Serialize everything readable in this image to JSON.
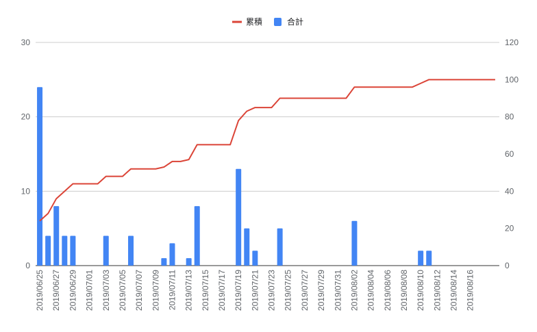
{
  "chart_data": {
    "type": "bar",
    "title": "",
    "x": [
      "2019/06/25",
      "2019/06/26",
      "2019/06/27",
      "2019/06/28",
      "2019/06/29",
      "2019/06/30",
      "2019/07/01",
      "2019/07/02",
      "2019/07/03",
      "2019/07/04",
      "2019/07/05",
      "2019/07/06",
      "2019/07/07",
      "2019/07/08",
      "2019/07/09",
      "2019/07/10",
      "2019/07/11",
      "2019/07/12",
      "2019/07/13",
      "2019/07/14",
      "2019/07/15",
      "2019/07/16",
      "2019/07/17",
      "2019/07/18",
      "2019/07/19",
      "2019/07/20",
      "2019/07/21",
      "2019/07/22",
      "2019/07/23",
      "2019/07/24",
      "2019/07/25",
      "2019/07/26",
      "2019/07/27",
      "2019/07/28",
      "2019/07/29",
      "2019/07/30",
      "2019/07/31",
      "2019/08/01",
      "2019/08/02",
      "2019/08/03",
      "2019/08/04",
      "2019/08/05",
      "2019/08/06",
      "2019/08/07",
      "2019/08/08",
      "2019/08/09",
      "2019/08/10",
      "2019/08/11",
      "2019/08/12",
      "2019/08/13",
      "2019/08/14",
      "2019/08/15",
      "2019/08/16",
      "2019/08/17",
      "2019/08/18",
      "2019/08/19"
    ],
    "x_tick_labels": [
      "2019/06/25",
      "2019/06/27",
      "2019/06/29",
      "2019/07/01",
      "2019/07/03",
      "2019/07/05",
      "2019/07/07",
      "2019/07/09",
      "2019/07/11",
      "2019/07/13",
      "2019/07/15",
      "2019/07/17",
      "2019/07/19",
      "2019/07/21",
      "2019/07/23",
      "2019/07/25",
      "2019/07/27",
      "2019/07/29",
      "2019/07/31",
      "2019/08/02",
      "2019/08/04",
      "2019/08/06",
      "2019/08/08",
      "2019/08/10",
      "2019/08/12",
      "2019/08/14",
      "2019/08/16"
    ],
    "series": [
      {
        "name": "合計",
        "type": "bar",
        "axis": "left",
        "color": "#4285f4",
        "values": [
          24,
          4,
          8,
          4,
          4,
          0,
          0,
          0,
          4,
          0,
          0,
          4,
          0,
          0,
          0,
          1,
          3,
          0,
          1,
          8,
          0,
          0,
          0,
          0,
          13,
          5,
          2,
          0,
          0,
          5,
          0,
          0,
          0,
          0,
          0,
          0,
          0,
          0,
          6,
          0,
          0,
          0,
          0,
          0,
          0,
          0,
          2,
          2,
          0,
          0,
          0,
          0,
          0,
          0,
          0,
          0
        ]
      },
      {
        "name": "累積",
        "type": "line",
        "axis": "right",
        "color": "#db4437",
        "values": [
          24,
          28,
          36,
          40,
          44,
          44,
          44,
          44,
          48,
          48,
          48,
          52,
          52,
          52,
          52,
          53,
          56,
          56,
          57,
          65,
          65,
          65,
          65,
          65,
          78,
          83,
          85,
          85,
          85,
          90,
          90,
          90,
          90,
          90,
          90,
          90,
          90,
          90,
          96,
          96,
          96,
          96,
          96,
          96,
          96,
          96,
          98,
          100,
          100,
          100,
          100,
          100,
          100,
          100,
          100,
          100
        ]
      }
    ],
    "ylim_left": [
      0,
      30
    ],
    "ylim_right": [
      0,
      120
    ],
    "yticks_left": [
      "0",
      "10",
      "20",
      "30"
    ],
    "yticks_right": [
      "0",
      "20",
      "40",
      "60",
      "80",
      "100",
      "120"
    ],
    "grid": true,
    "legend_position": "top"
  }
}
